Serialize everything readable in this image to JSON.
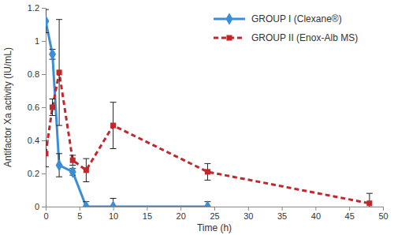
{
  "chart_data": {
    "type": "line",
    "x_label": "Time (h)",
    "y_label": "Antifactor Xa activity  (IU/mL)",
    "xlim": [
      0,
      50
    ],
    "xticks": [
      0,
      5,
      10,
      15,
      20,
      25,
      30,
      35,
      40,
      45,
      50
    ],
    "ylim": [
      0,
      1.2
    ],
    "yticks": [
      0,
      0.2,
      0.4,
      0.6,
      0.8,
      1,
      1.2
    ],
    "grid": false,
    "legend": "upper right",
    "series": [
      {
        "name": "GROUP I (Clexane®)",
        "color": "#3b8ed6",
        "marker": "diamond",
        "line_style": "solid",
        "x": [
          0,
          1,
          2,
          4,
          6,
          10,
          24
        ],
        "values": [
          1.12,
          0.92,
          0.25,
          0.21,
          0,
          0,
          0
        ],
        "errors": [
          0.07,
          0.03,
          0.07,
          0.02,
          0.03,
          0.05,
          0.03
        ]
      },
      {
        "name": "GROUP II (Enox-Alb MS)",
        "color": "#c0282e",
        "marker": "square",
        "line_style": "dashed",
        "x": [
          0,
          1,
          2,
          4,
          6,
          10,
          24,
          48
        ],
        "values": [
          0.32,
          0.6,
          0.81,
          0.28,
          0.22,
          0.49,
          0.21,
          0.02
        ],
        "errors": [
          0.08,
          0.05,
          0.32,
          0.03,
          0.07,
          0.14,
          0.05,
          0.06
        ]
      }
    ]
  }
}
